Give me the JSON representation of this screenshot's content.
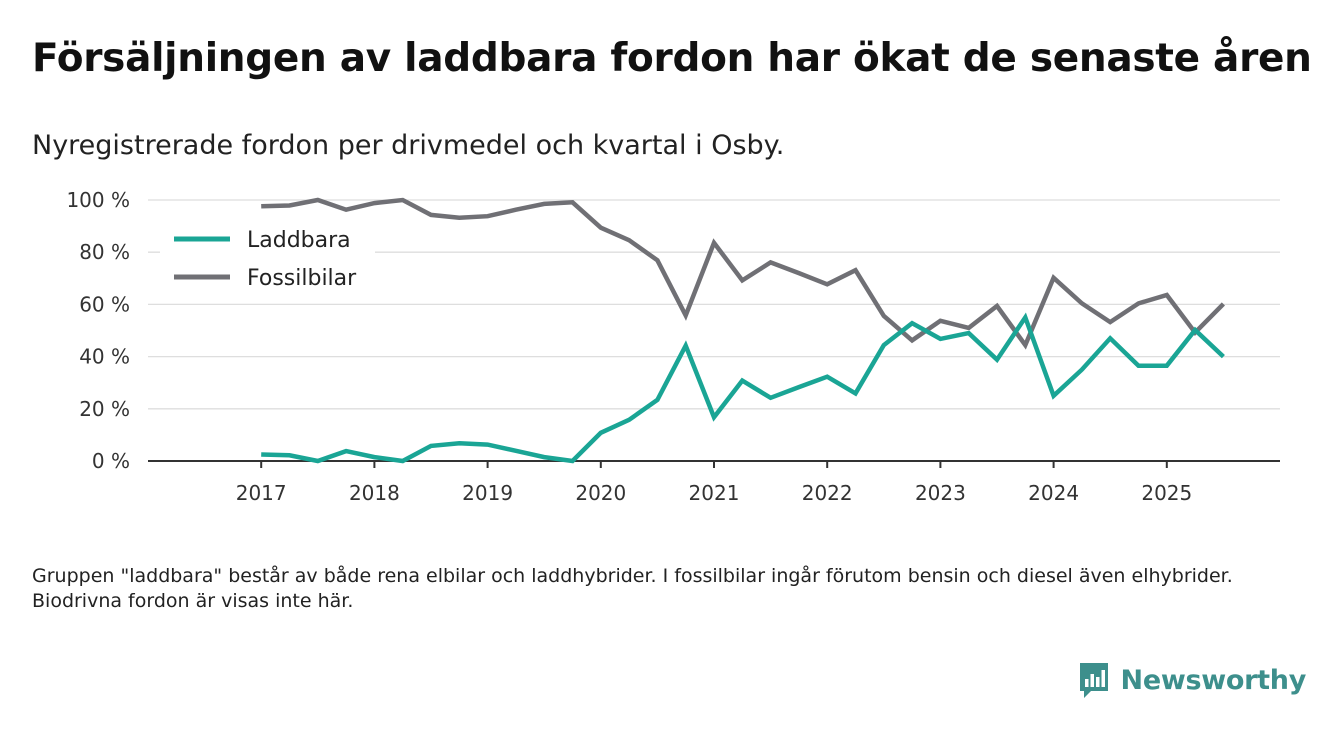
{
  "title": "Försäljningen av laddbara fordon har ökat de senaste åren",
  "subtitle": "Nyregistrerade fordon per drivmedel och kvartal i Osby.",
  "footnote": "Gruppen \"laddbara\" består av både rena elbilar och laddhybrider. I fossilbilar ingår förutom bensin och diesel även elhybrider. Biodrivna fordon är visas inte här.",
  "brand": {
    "name": "Newsworthy",
    "icon": "newsworthy-logo-icon",
    "color": "#3d8f8c"
  },
  "chart_data": {
    "type": "line",
    "title": "Försäljningen av laddbara fordon har ökat de senaste åren",
    "subtitle": "Nyregistrerade fordon per drivmedel och kvartal i Osby.",
    "xlabel": "",
    "ylabel": "",
    "grid": true,
    "legend_position": "top-left",
    "x": [
      2017.0,
      2017.25,
      2017.5,
      2017.75,
      2018.0,
      2018.25,
      2018.5,
      2018.75,
      2019.0,
      2019.25,
      2019.5,
      2019.75,
      2020.0,
      2020.25,
      2020.5,
      2020.75,
      2021.0,
      2021.25,
      2021.5,
      2021.75,
      2022.0,
      2022.25,
      2022.5,
      2022.75,
      2023.0,
      2023.25,
      2023.5,
      2023.75,
      2024.0,
      2024.25,
      2024.5,
      2024.75,
      2025.0,
      2025.25,
      2025.5
    ],
    "xlim": [
      2016.0,
      2026.0
    ],
    "ylim": [
      0,
      100
    ],
    "yticks": [
      0,
      20,
      40,
      60,
      80,
      100
    ],
    "ytick_labels": [
      "0 %",
      "20 %",
      "40 %",
      "60 %",
      "80 %",
      "100 %"
    ],
    "xticks": [
      2017,
      2018,
      2019,
      2020,
      2021,
      2022,
      2023,
      2024,
      2025
    ],
    "xtick_labels": [
      "2017",
      "2018",
      "2019",
      "2020",
      "2021",
      "2022",
      "2023",
      "2024",
      "2025"
    ],
    "series": [
      {
        "name": "Laddbara",
        "color": "#1aa595",
        "values": [
          2.5,
          2.2,
          0,
          3.8,
          1.5,
          0,
          5.8,
          6.8,
          6.3,
          3.9,
          1.5,
          0,
          10.8,
          15.8,
          23.4,
          44.2,
          16.8,
          30.8,
          24.2,
          28.3,
          32.3,
          25.9,
          44.4,
          52.8,
          46.8,
          49.0,
          38.8,
          55.0,
          25.0,
          35.0,
          47.0,
          36.5,
          36.5,
          50.2,
          40.0
        ]
      },
      {
        "name": "Fossilbilar",
        "color": "#707075",
        "values": [
          97.6,
          97.9,
          100,
          96.3,
          98.8,
          100,
          94.3,
          93.2,
          93.8,
          96.3,
          98.5,
          99.1,
          89.4,
          84.6,
          76.9,
          55.8,
          83.6,
          69.2,
          76.1,
          72.0,
          67.7,
          73.1,
          55.6,
          46.2,
          53.7,
          51.0,
          59.4,
          44.4,
          70.2,
          60.4,
          53.2,
          60.4,
          63.6,
          49.2,
          60.2
        ]
      }
    ]
  }
}
